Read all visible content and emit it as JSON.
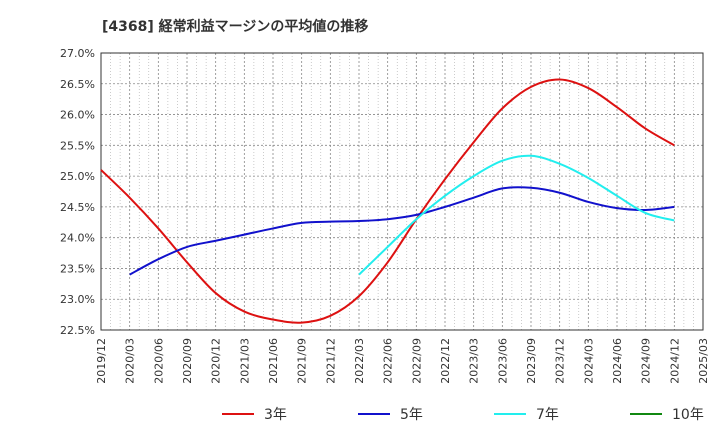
{
  "chart_data": {
    "type": "line",
    "title": "[4368]  経常利益マージンの平均値の推移",
    "y_ticks": [
      "27.0%",
      "26.5%",
      "26.0%",
      "25.5%",
      "25.0%",
      "24.5%",
      "24.0%",
      "23.5%",
      "23.0%",
      "22.5%"
    ],
    "x_ticks": [
      "2019/12",
      "2020/03",
      "2020/06",
      "2020/09",
      "2020/12",
      "2021/03",
      "2021/06",
      "2021/09",
      "2021/12",
      "2022/03",
      "2022/06",
      "2022/09",
      "2022/12",
      "2023/03",
      "2023/06",
      "2023/09",
      "2023/12",
      "2024/03",
      "2024/06",
      "2024/09",
      "2024/12",
      "2025/03"
    ],
    "ylim": [
      22.5,
      27.0
    ],
    "grid": true,
    "legend_position": "bottom",
    "series": [
      {
        "name": "3年",
        "color": "#dd1111",
        "start_index": 0,
        "values": [
          25.1,
          24.65,
          24.15,
          23.6,
          23.1,
          22.8,
          22.67,
          22.62,
          22.73,
          23.05,
          23.6,
          24.3,
          24.95,
          25.55,
          26.1,
          26.45,
          26.57,
          26.43,
          26.12,
          25.77,
          25.5
        ]
      },
      {
        "name": "5年",
        "color": "#1111cc",
        "start_index": 1,
        "values": [
          23.4,
          23.65,
          23.85,
          23.95,
          24.05,
          24.15,
          24.24,
          24.26,
          24.27,
          24.3,
          24.37,
          24.5,
          24.65,
          24.8,
          24.81,
          24.73,
          24.58,
          24.48,
          24.45,
          24.5
        ]
      },
      {
        "name": "7年",
        "color": "#22eeee",
        "start_index": 9,
        "values": [
          23.4,
          23.85,
          24.3,
          24.68,
          25.0,
          25.25,
          25.33,
          25.2,
          24.97,
          24.68,
          24.4,
          24.28
        ]
      },
      {
        "name": "10年",
        "color": "#118811",
        "start_index": 0,
        "values": []
      }
    ]
  }
}
